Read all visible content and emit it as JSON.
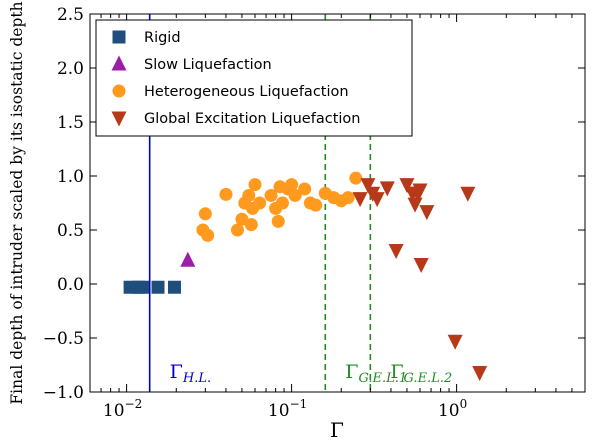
{
  "chart_data": {
    "type": "scatter",
    "xlabel": "Γ",
    "ylabel": "Final depth of intruder scaled by its isostatic depth",
    "xscale": "log",
    "xlim": [
      0.006,
      6
    ],
    "ylim": [
      -1.0,
      2.5
    ],
    "x_ticks": [
      {
        "value": 0.01,
        "base": "10",
        "exp": "−2"
      },
      {
        "value": 0.1,
        "base": "10",
        "exp": "−1"
      },
      {
        "value": 1,
        "base": "10",
        "exp": "0"
      }
    ],
    "y_ticks": [
      {
        "value": 2.5,
        "label": "2.5"
      },
      {
        "value": 2.0,
        "label": "2.0"
      },
      {
        "value": 1.5,
        "label": "1.5"
      },
      {
        "value": 1.0,
        "label": "1.0"
      },
      {
        "value": 0.5,
        "label": "0.5"
      },
      {
        "value": 0.0,
        "label": "0.0"
      },
      {
        "value": -0.5,
        "label": "−0.5"
      },
      {
        "value": -1.0,
        "label": "−1.0"
      }
    ],
    "legend_position": "top-left",
    "series": [
      {
        "name": "Rigid",
        "marker": "square",
        "color": "#1f4e7d",
        "points": [
          [
            0.0105,
            -0.03
          ],
          [
            0.0118,
            -0.03
          ],
          [
            0.0125,
            -0.03
          ],
          [
            0.0155,
            -0.03
          ],
          [
            0.0195,
            -0.03
          ]
        ]
      },
      {
        "name": "Slow Liquefaction",
        "marker": "triangle-up",
        "color": "#9b1fa6",
        "points": [
          [
            0.0235,
            0.22
          ]
        ]
      },
      {
        "name": "Heterogeneous Liquefaction",
        "marker": "circle",
        "color": "#ff9a1e",
        "points": [
          [
            0.029,
            0.5
          ],
          [
            0.03,
            0.65
          ],
          [
            0.031,
            0.45
          ],
          [
            0.04,
            0.83
          ],
          [
            0.047,
            0.5
          ],
          [
            0.05,
            0.6
          ],
          [
            0.052,
            0.75
          ],
          [
            0.055,
            0.82
          ],
          [
            0.057,
            0.55
          ],
          [
            0.058,
            0.7
          ],
          [
            0.06,
            0.92
          ],
          [
            0.064,
            0.75
          ],
          [
            0.075,
            0.82
          ],
          [
            0.08,
            0.7
          ],
          [
            0.083,
            0.58
          ],
          [
            0.085,
            0.9
          ],
          [
            0.088,
            0.75
          ],
          [
            0.095,
            0.88
          ],
          [
            0.1,
            0.92
          ],
          [
            0.105,
            0.82
          ],
          [
            0.12,
            0.88
          ],
          [
            0.13,
            0.75
          ],
          [
            0.14,
            0.73
          ],
          [
            0.16,
            0.84
          ],
          [
            0.18,
            0.8
          ],
          [
            0.2,
            0.77
          ],
          [
            0.22,
            0.8
          ],
          [
            0.245,
            0.98
          ]
        ]
      },
      {
        "name": "Global Excitation Liquefaction",
        "marker": "triangle-down",
        "color": "#b8391a",
        "points": [
          [
            0.26,
            0.79
          ],
          [
            0.29,
            0.92
          ],
          [
            0.31,
            0.84
          ],
          [
            0.33,
            0.79
          ],
          [
            0.38,
            0.89
          ],
          [
            0.43,
            0.31
          ],
          [
            0.5,
            0.92
          ],
          [
            0.54,
            0.84
          ],
          [
            0.56,
            0.74
          ],
          [
            0.58,
            0.84
          ],
          [
            0.6,
            0.87
          ],
          [
            0.61,
            0.18
          ],
          [
            0.66,
            0.67
          ],
          [
            0.98,
            -0.53
          ],
          [
            1.17,
            0.84
          ],
          [
            1.38,
            -0.82
          ]
        ]
      }
    ],
    "reference_lines": [
      {
        "x": 0.0138,
        "style": "solid",
        "color": "#0000cc",
        "label_main": "Γ",
        "label_sub": "H.L."
      },
      {
        "x": 0.16,
        "style": "dashed",
        "color": "#228b22",
        "label_main": "Γ",
        "label_sub": "G.E.L.1"
      },
      {
        "x": 0.3,
        "style": "dashed",
        "color": "#228b22",
        "label_main": "Γ",
        "label_sub": "G.E.L.2"
      }
    ]
  }
}
